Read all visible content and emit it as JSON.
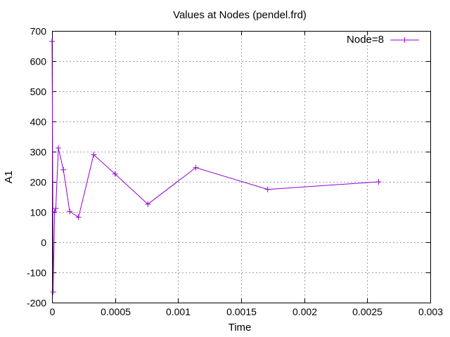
{
  "chart_data": {
    "type": "line",
    "title": "Values at Nodes (pendel.frd)",
    "xlabel": "Time",
    "ylabel": "A1",
    "xlim": [
      0,
      0.003
    ],
    "ylim": [
      -200,
      700
    ],
    "x_ticks": [
      0,
      0.0005,
      0.001,
      0.0015,
      0.002,
      0.0025,
      0.003
    ],
    "x_tick_labels": [
      "0",
      "0.0005",
      "0.001",
      "0.0015",
      "0.002",
      "0.0025",
      "0.003"
    ],
    "y_ticks": [
      -200,
      -100,
      0,
      100,
      200,
      300,
      400,
      500,
      600,
      700
    ],
    "y_tick_labels": [
      "-200",
      "-100",
      "0",
      "100",
      "200",
      "300",
      "400",
      "500",
      "600",
      "700"
    ],
    "grid": true,
    "legend_position": "top-right",
    "series": [
      {
        "name": "Node=8",
        "color": "#9400d3",
        "marker": "plus",
        "x": [
          0.0,
          1e-05,
          2e-05,
          3e-05,
          5e-05,
          9e-05,
          0.00014,
          0.00021,
          0.00033,
          0.0005,
          0.00076,
          0.00114,
          0.00171,
          0.00259
        ],
        "y": [
          665,
          -165,
          100,
          112,
          312,
          240,
          102,
          83,
          290,
          226,
          126,
          247,
          175,
          200
        ]
      }
    ]
  }
}
